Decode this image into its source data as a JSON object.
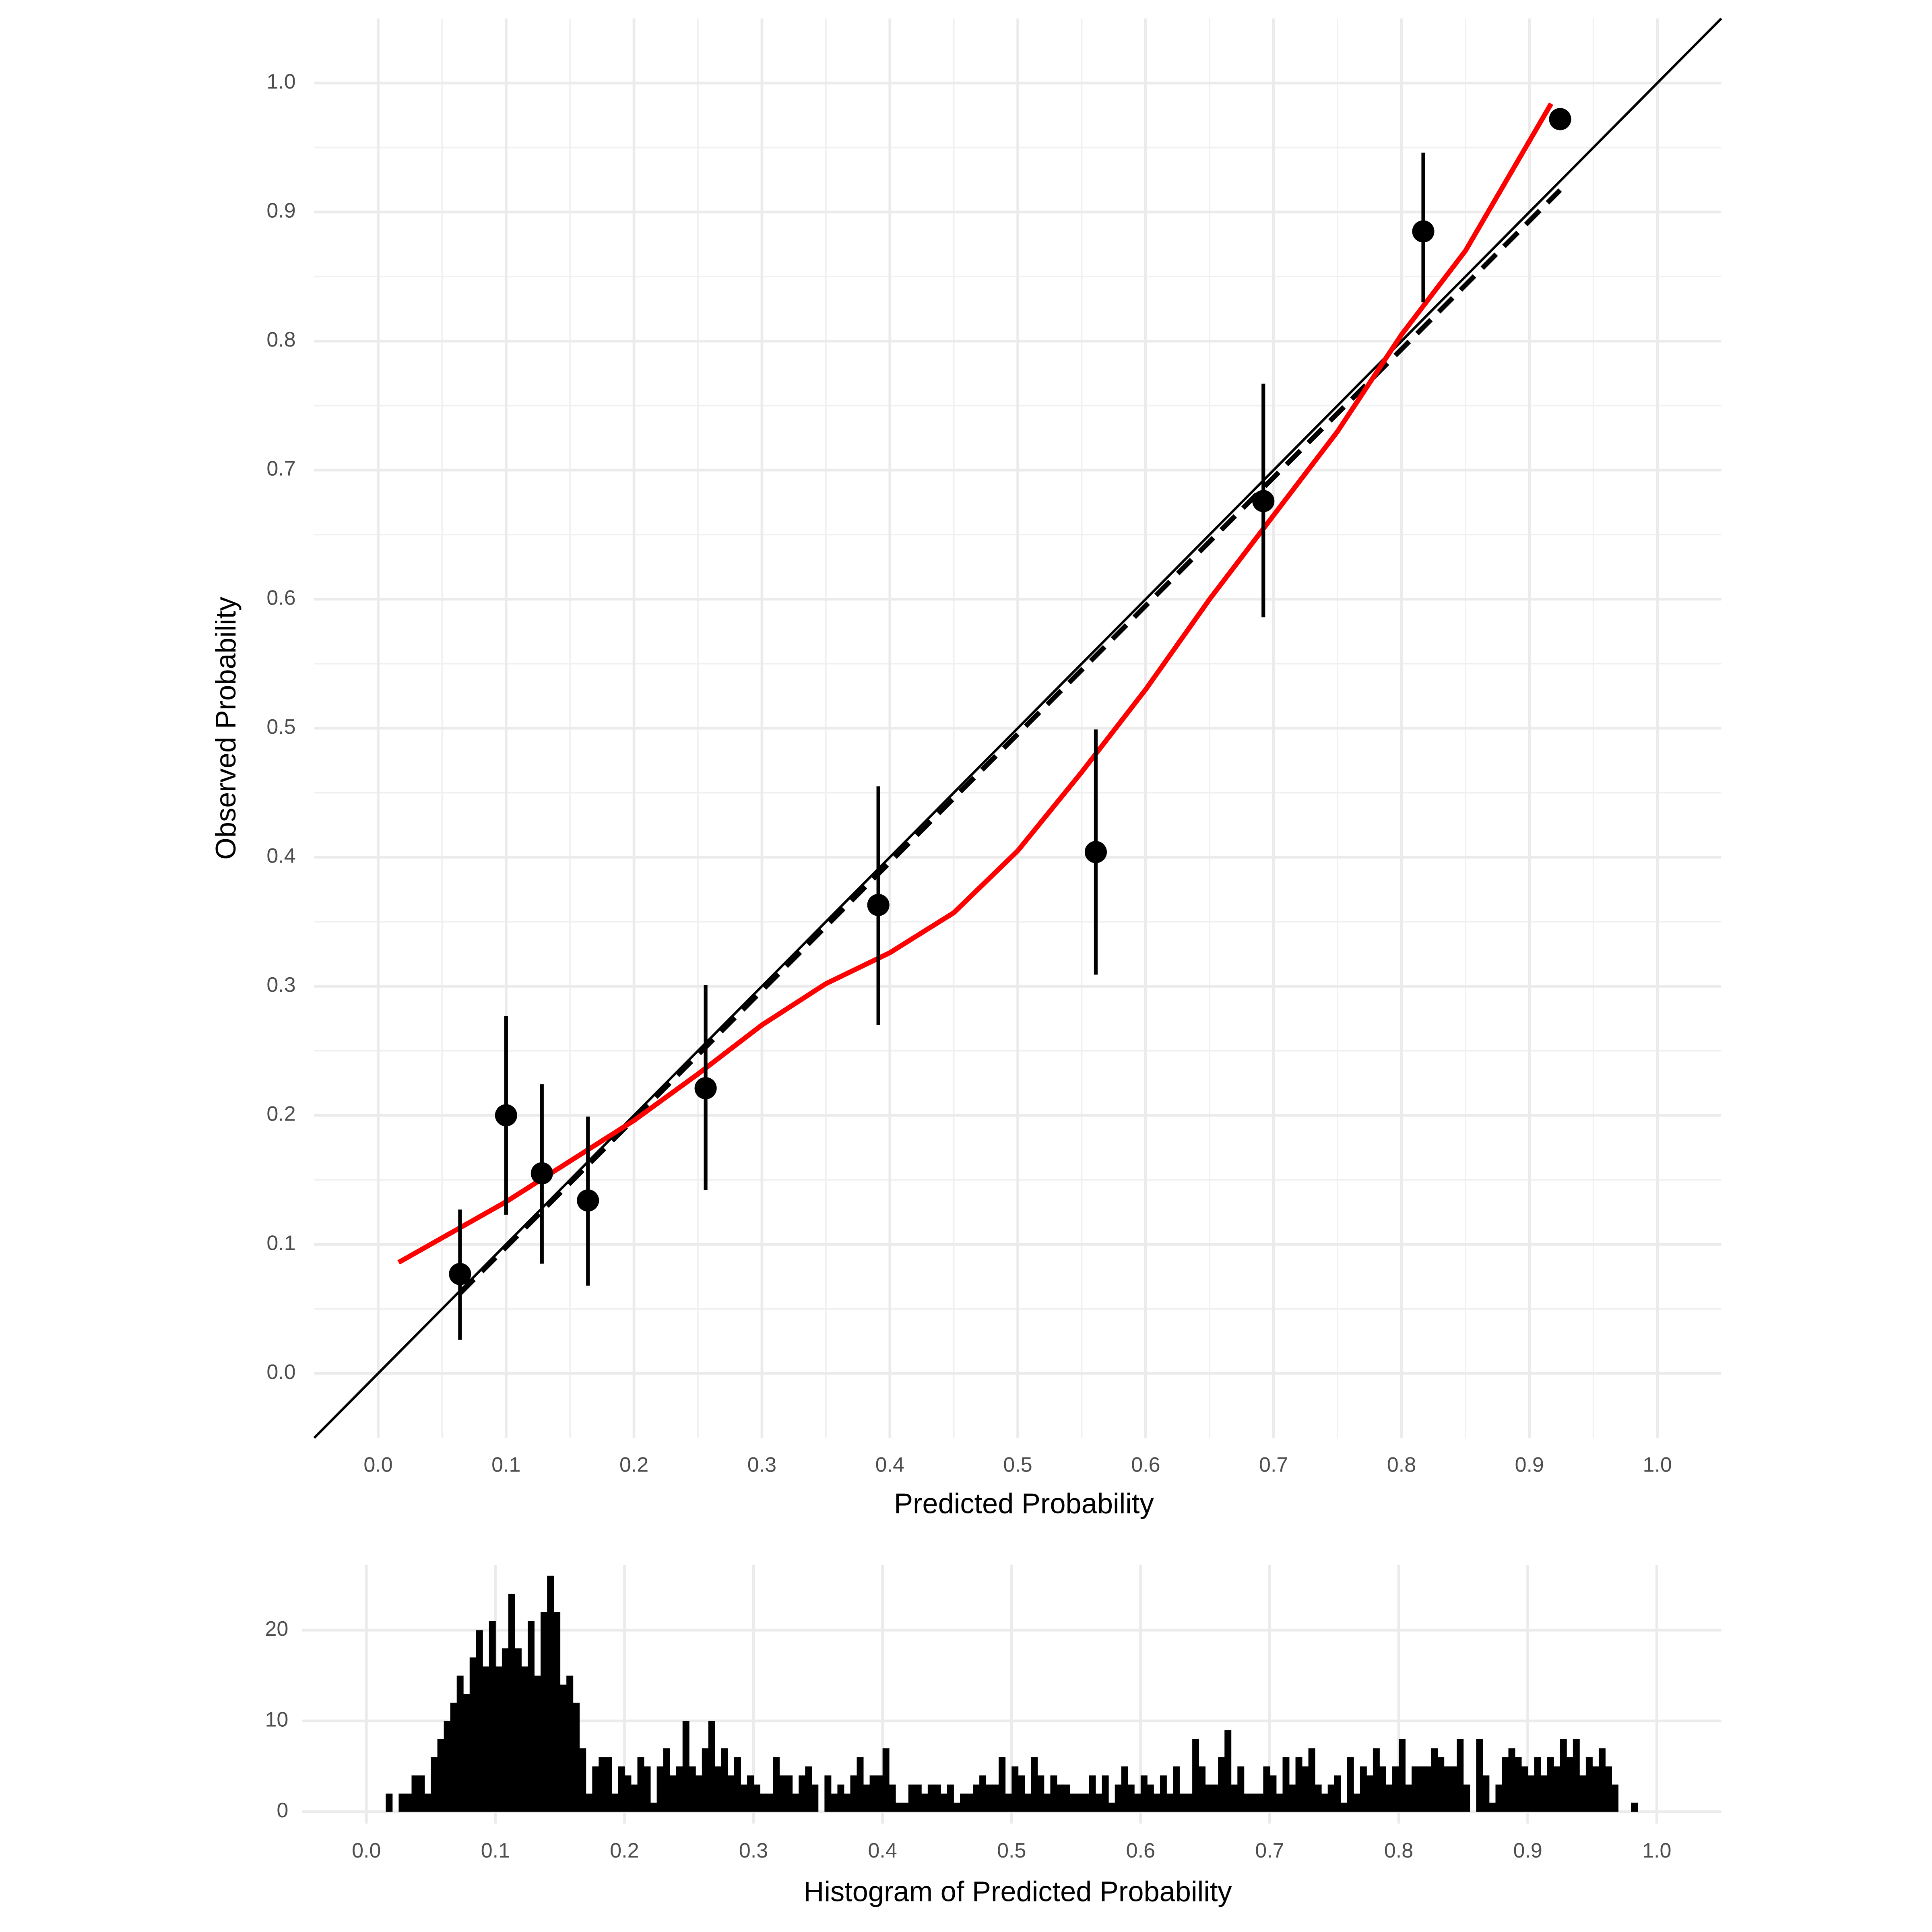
{
  "chart_data": [
    {
      "type": "scatter",
      "xlabel": "Predicted Probability",
      "ylabel": "Observed Probability",
      "xlim": [
        -0.05,
        1.05
      ],
      "ylim": [
        -0.05,
        1.05
      ],
      "xticks": [
        {
          "value": 0,
          "label": "0.0"
        },
        0.1,
        0.2,
        0.3,
        0.4,
        0.5,
        0.6,
        0.7,
        0.8,
        0.9,
        {
          "value": 1,
          "label": "1.0"
        }
      ],
      "yticks": [
        {
          "value": 0,
          "label": "0.0"
        },
        0.1,
        0.2,
        0.3,
        0.4,
        0.5,
        0.6,
        0.7,
        0.8,
        0.9,
        {
          "value": 1,
          "label": "1.0"
        }
      ],
      "xminorticks": [
        0.05,
        0.15,
        0.25,
        0.35,
        0.45,
        0.55,
        0.65,
        0.75,
        0.85,
        0.95
      ],
      "yminorticks": [
        0.05,
        0.15,
        0.25,
        0.35,
        0.45,
        0.55,
        0.65,
        0.75,
        0.85,
        0.95
      ],
      "grid": true,
      "series": [
        {
          "style": "line",
          "color": "#000000",
          "x": [
            -0.05,
            1.05
          ],
          "values": [
            -0.05,
            1.05
          ]
        },
        {
          "style": "dashed",
          "color": "#000000",
          "x": [
            0.064,
            0.924
          ],
          "values": [
            0.062,
            0.917
          ]
        },
        {
          "style": "line",
          "color": "#ff0000",
          "width": 4,
          "x": [
            0.016,
            0.1,
            0.2,
            0.25,
            0.3,
            0.35,
            0.4,
            0.45,
            0.5,
            0.55,
            0.6,
            0.65,
            0.7,
            0.75,
            0.8,
            0.85,
            0.917
          ],
          "values": [
            0.086,
            0.133,
            0.196,
            0.232,
            0.27,
            0.302,
            0.326,
            0.357,
            0.405,
            0.466,
            0.53,
            0.6,
            0.665,
            0.73,
            0.805,
            0.87,
            0.984
          ]
        },
        {
          "style": "points",
          "color": "#000000",
          "x": [
            0.064,
            0.1,
            0.128,
            0.164,
            0.256,
            0.391,
            0.561,
            0.692,
            0.817,
            0.924
          ],
          "values": [
            0.077,
            0.2,
            0.155,
            0.134,
            0.221,
            0.363,
            0.404,
            0.676,
            0.885,
            0.972
          ],
          "lower": [
            0.026,
            0.123,
            0.085,
            0.068,
            0.142,
            0.27,
            0.309,
            0.586,
            0.83,
            null
          ],
          "upper": [
            0.127,
            0.277,
            0.224,
            0.199,
            0.301,
            0.455,
            0.499,
            0.767,
            0.946,
            null
          ]
        }
      ]
    },
    {
      "type": "histogram",
      "xlabel": "Histogram of Predicted Probability",
      "xlim": [
        -0.05,
        1.05
      ],
      "ylim": [
        -1.3,
        27.2
      ],
      "xticks": [
        {
          "value": 0,
          "label": "0.0"
        },
        0.1,
        0.2,
        0.3,
        0.4,
        0.5,
        0.6,
        0.7,
        0.8,
        0.9,
        {
          "value": 1,
          "label": "1.0"
        }
      ],
      "yticks": [
        0,
        10,
        20
      ],
      "grid": true,
      "color": "#000000",
      "bins": [
        0.01,
        0.015,
        0.02,
        0.025,
        0.03,
        0.035,
        0.04,
        0.045,
        0.05,
        0.055,
        0.06,
        0.065,
        0.07,
        0.075,
        0.08,
        0.085,
        0.09,
        0.095,
        0.1,
        0.105,
        0.11,
        0.115,
        0.12,
        0.125,
        0.13,
        0.135,
        0.14,
        0.145,
        0.15,
        0.155,
        0.16,
        0.165,
        0.17,
        0.175,
        0.18,
        0.185,
        0.19,
        0.195,
        0.2,
        0.205,
        0.21,
        0.215,
        0.22,
        0.225,
        0.23,
        0.235,
        0.24,
        0.245,
        0.25,
        0.255,
        0.26,
        0.265,
        0.27,
        0.275,
        0.28,
        0.285,
        0.29,
        0.295,
        0.3,
        0.305,
        0.31,
        0.315,
        0.32,
        0.325,
        0.33,
        0.335,
        0.34,
        0.345,
        0.35,
        0.355,
        0.36,
        0.365,
        0.37,
        0.375,
        0.38,
        0.385,
        0.39,
        0.395,
        0.4,
        0.405,
        0.41,
        0.415,
        0.42,
        0.425,
        0.43,
        0.435,
        0.44,
        0.445,
        0.45,
        0.455,
        0.46,
        0.465,
        0.47,
        0.475,
        0.48,
        0.485,
        0.49,
        0.495,
        0.5,
        0.505,
        0.51,
        0.515,
        0.52,
        0.525,
        0.53,
        0.535,
        0.54,
        0.545,
        0.55,
        0.555,
        0.56,
        0.565,
        0.57,
        0.575,
        0.58,
        0.585,
        0.59,
        0.595,
        0.6,
        0.605,
        0.61,
        0.615,
        0.62,
        0.625,
        0.63,
        0.635,
        0.64,
        0.645,
        0.65,
        0.655,
        0.66,
        0.665,
        0.67,
        0.675,
        0.68,
        0.685,
        0.69,
        0.695,
        0.7,
        0.705,
        0.71,
        0.715,
        0.72,
        0.725,
        0.73,
        0.735,
        0.74,
        0.745,
        0.75,
        0.755,
        0.76,
        0.765,
        0.77,
        0.775,
        0.78,
        0.785,
        0.79,
        0.795,
        0.8,
        0.805,
        0.81,
        0.815,
        0.82,
        0.825,
        0.83,
        0.835,
        0.84,
        0.845,
        0.85,
        0.855,
        0.86,
        0.865,
        0.87,
        0.875,
        0.88,
        0.885,
        0.89,
        0.895,
        0.9,
        0.905,
        0.91,
        0.915,
        0.92,
        0.925,
        0.93,
        0.935,
        0.94,
        0.945,
        0.95,
        0.955,
        0.96,
        0.965,
        0.97,
        0.975,
        0.98,
        0.985
      ],
      "counts": [
        0,
        2,
        0,
        2,
        2,
        4,
        4,
        2,
        6,
        8,
        10,
        12,
        15,
        13,
        17,
        20,
        16,
        21,
        16,
        18,
        24,
        18,
        16,
        21,
        15,
        22,
        26,
        22,
        14,
        15,
        12,
        7,
        2,
        5,
        6,
        6,
        2,
        5,
        4,
        3,
        6,
        5,
        1,
        5,
        7,
        4,
        5,
        10,
        5,
        4,
        7,
        10,
        5,
        7,
        4,
        6,
        3,
        4,
        3,
        2,
        2,
        6,
        4,
        4,
        2,
        4,
        5,
        3,
        0,
        4,
        2,
        3,
        2,
        4,
        6,
        3,
        4,
        4,
        7,
        3,
        1,
        1,
        3,
        3,
        2,
        3,
        3,
        2,
        3,
        1,
        2,
        2,
        3,
        4,
        3,
        3,
        6,
        2,
        5,
        4,
        2,
        6,
        4,
        2,
        4,
        3,
        3,
        2,
        2,
        2,
        4,
        2,
        4,
        1,
        3,
        5,
        3,
        2,
        4,
        3,
        2,
        4,
        2,
        5,
        2,
        2,
        8,
        5,
        3,
        3,
        6,
        9,
        3,
        5,
        2,
        2,
        2,
        5,
        4,
        2,
        6,
        3,
        6,
        5,
        7,
        3,
        2,
        3,
        4,
        1,
        6,
        2,
        5,
        4,
        7,
        5,
        3,
        5,
        8,
        3,
        5,
        5,
        5,
        7,
        6,
        5,
        5,
        8,
        3,
        0,
        8,
        4,
        1,
        3,
        6,
        7,
        6,
        5,
        4,
        6,
        4,
        6,
        5,
        8,
        6,
        8,
        4,
        6,
        5,
        7,
        5,
        3,
        0,
        0,
        1
      ]
    }
  ]
}
